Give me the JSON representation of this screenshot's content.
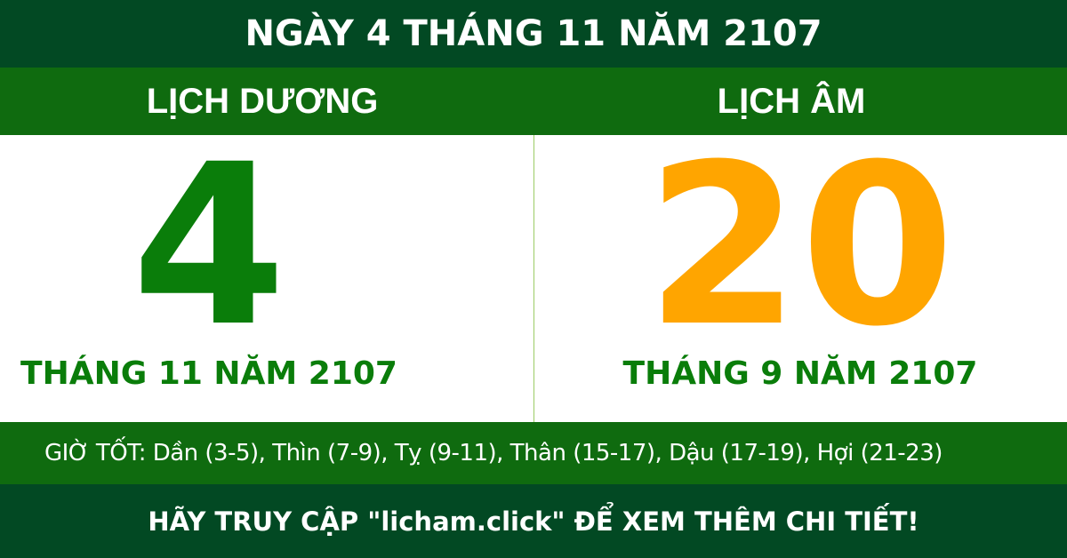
{
  "title": "NGÀY 4 THÁNG 11 NĂM 2107",
  "solar": {
    "header": "LỊCH DƯƠNG",
    "day": "4",
    "month_year": "THÁNG 11 NĂM 2107"
  },
  "lunar": {
    "header": "LỊCH ÂM",
    "day": "20",
    "month_year": "THÁNG 9 NĂM 2107"
  },
  "good_hours": "GIỜ TỐT: Dần (3-5), Thìn (7-9), Tỵ (9-11), Thân (15-17), Dậu (17-19), Hợi (21-23)",
  "footer": "HÃY TRUY CẬP \"licham.click\" ĐỂ XEM THÊM CHI TIẾT!",
  "colors": {
    "dark_green": "#024923",
    "green": "#0f6b0f",
    "solar_day": "#0a7d0a",
    "lunar_day": "#ffa500"
  }
}
